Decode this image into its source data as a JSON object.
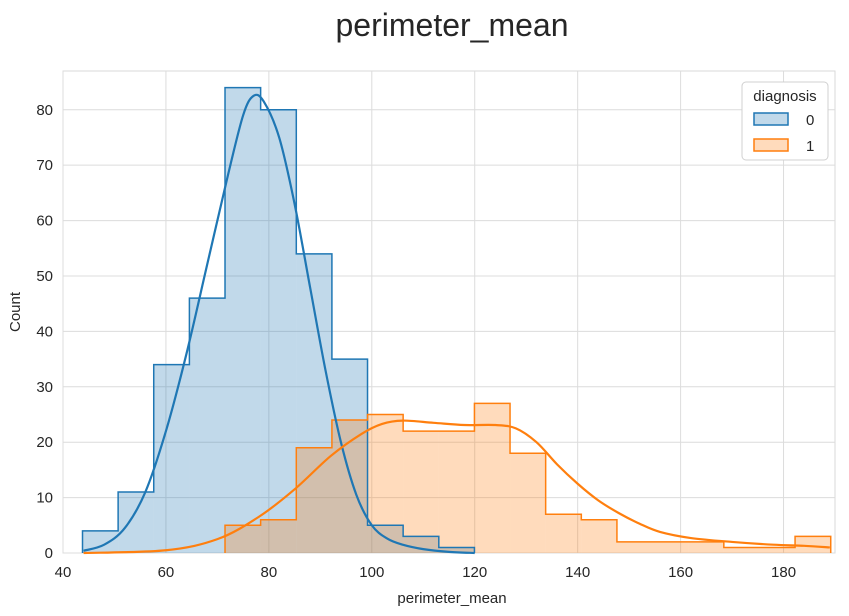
{
  "chart_data": {
    "type": "histogram",
    "title": "perimeter_mean",
    "xlabel": "perimeter_mean",
    "ylabel": "Count",
    "xlim": [
      40,
      190
    ],
    "ylim": [
      0,
      87
    ],
    "xticks": [
      40,
      60,
      80,
      100,
      120,
      140,
      160,
      180
    ],
    "yticks": [
      0,
      10,
      20,
      30,
      40,
      50,
      60,
      70,
      80
    ],
    "grid": true,
    "legend": {
      "title": "diagnosis",
      "position": "top-right"
    },
    "bin_edges": [
      43.79,
      50.71,
      57.63,
      64.56,
      71.48,
      78.4,
      85.33,
      92.25,
      99.17,
      106.09,
      113.02,
      119.94,
      126.86,
      133.78,
      140.71,
      147.63,
      154.55,
      161.48,
      168.4,
      175.32,
      182.24,
      189.17
    ],
    "series": [
      {
        "name": "0",
        "color": "#1f77b4",
        "counts": [
          4,
          11,
          34,
          46,
          84,
          80,
          54,
          35,
          5,
          3,
          1,
          0,
          0,
          0,
          0,
          0,
          0,
          0,
          0,
          0,
          0
        ],
        "kde": [
          [
            44,
            0.4
          ],
          [
            48,
            1.5
          ],
          [
            52,
            4.5
          ],
          [
            56,
            11
          ],
          [
            60,
            22
          ],
          [
            64,
            36
          ],
          [
            68,
            52
          ],
          [
            72,
            68
          ],
          [
            75,
            79
          ],
          [
            77,
            82.5
          ],
          [
            79,
            81.5
          ],
          [
            82,
            75
          ],
          [
            85,
            63
          ],
          [
            88,
            48
          ],
          [
            91,
            33
          ],
          [
            94,
            20
          ],
          [
            97,
            10.5
          ],
          [
            100,
            5
          ],
          [
            103,
            2.6
          ],
          [
            106,
            1.5
          ],
          [
            110,
            0.7
          ],
          [
            115,
            0.2
          ],
          [
            120,
            0
          ]
        ]
      },
      {
        "name": "1",
        "color": "#ff7f0e",
        "counts": [
          0,
          0,
          0,
          0,
          5,
          6,
          19,
          24,
          25,
          22,
          22,
          27,
          18,
          7,
          6,
          2,
          2,
          2,
          1,
          1,
          3
        ],
        "kde": [
          [
            44,
            0
          ],
          [
            60,
            0.5
          ],
          [
            70,
            2.5
          ],
          [
            78,
            6.5
          ],
          [
            85,
            11.5
          ],
          [
            92,
            17.5
          ],
          [
            98,
            21.5
          ],
          [
            102,
            23.3
          ],
          [
            106,
            23.9
          ],
          [
            112,
            23.5
          ],
          [
            118,
            23.1
          ],
          [
            124,
            23.1
          ],
          [
            128,
            22.5
          ],
          [
            132,
            20
          ],
          [
            136,
            16
          ],
          [
            140,
            12.5
          ],
          [
            144,
            9.5
          ],
          [
            148,
            7.2
          ],
          [
            152,
            5.3
          ],
          [
            156,
            3.8
          ],
          [
            162,
            2.7
          ],
          [
            170,
            2
          ],
          [
            178,
            1.5
          ],
          [
            184,
            1.3
          ],
          [
            189,
            1.0
          ]
        ]
      }
    ]
  }
}
